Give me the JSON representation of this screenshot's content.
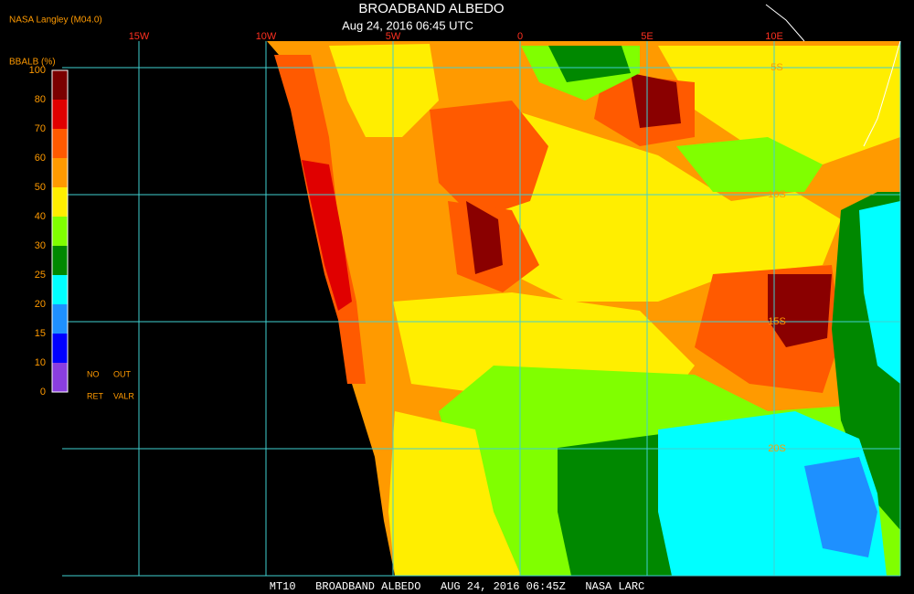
{
  "header": {
    "source": "NASA Langley (M04.0)",
    "title": "BROADBAND ALBEDO",
    "subtitle": "Aug 24, 2016 06:45 UTC"
  },
  "longitudes": [
    "15W",
    "10W",
    "5W",
    "0",
    "5E",
    "10E"
  ],
  "latitudes": [
    "5S",
    "10S",
    "15S",
    "20S"
  ],
  "legend": {
    "label": "BBALB (%)",
    "ticks": [
      "100",
      "80",
      "70",
      "60",
      "50",
      "40",
      "30",
      "25",
      "20",
      "15",
      "10",
      "0"
    ],
    "notes": [
      "NO",
      "OUT",
      "RET",
      "VALR"
    ]
  },
  "footer": "MT10   BROADBAND ALBEDO   AUG 24, 2016 06:45Z   NASA LARC"
}
